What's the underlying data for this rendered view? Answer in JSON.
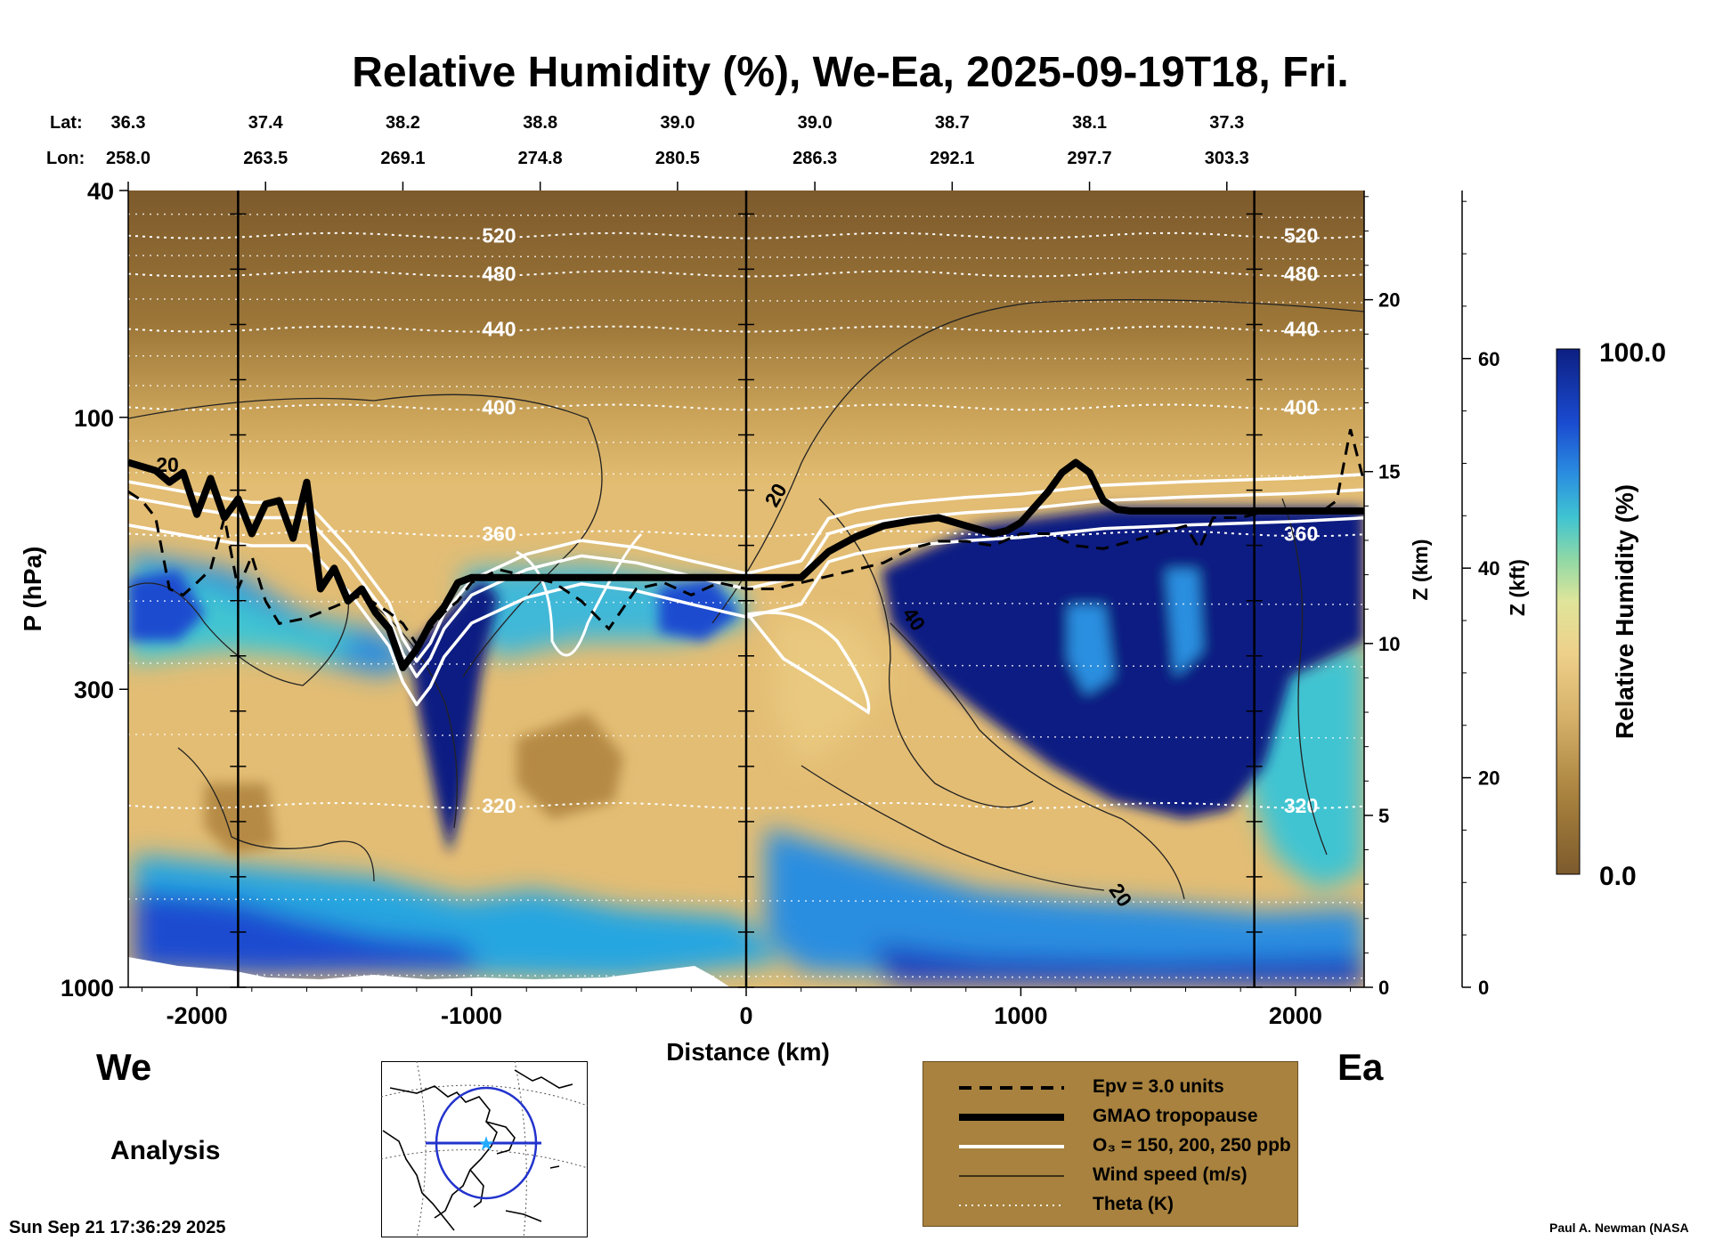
{
  "chart_data": {
    "type": "heatmap",
    "title": "Relative Humidity (%), We-Ea, 2025-09-19T18, Fri.",
    "xlabel": "Distance (km)",
    "ylabel": "P (hPa)",
    "right_axis_km_label": "Z (km)",
    "right_axis_kft_label": "Z (kft)",
    "colorbar_label": "Relative Humidity (%)",
    "colorbar_max_label": "100.0",
    "colorbar_min_label": "0.0",
    "colorbar_range": [
      0,
      100
    ],
    "xlim": [
      -2250,
      2250
    ],
    "ylim_hpa": [
      1000,
      40
    ],
    "y_scale": "log",
    "x_ticks": [
      {
        "v": -2000,
        "t": "-2000"
      },
      {
        "v": -1000,
        "t": "-1000"
      },
      {
        "v": 0,
        "t": "0"
      },
      {
        "v": 1000,
        "t": "1000"
      },
      {
        "v": 2000,
        "t": "2000"
      }
    ],
    "y_ticks": [
      {
        "v": 1000,
        "t": "1000"
      },
      {
        "v": 300,
        "t": "300"
      },
      {
        "v": 100,
        "t": "100"
      },
      {
        "v": 40,
        "t": "40"
      }
    ],
    "z_km_ticks": [
      {
        "v": 0,
        "t": "0"
      },
      {
        "v": 5,
        "t": "5"
      },
      {
        "v": 10,
        "t": "10"
      },
      {
        "v": 15,
        "t": "15"
      },
      {
        "v": 20,
        "t": "20"
      }
    ],
    "z_kft_ticks": [
      {
        "v": 0,
        "t": "0"
      },
      {
        "v": 20,
        "t": "20"
      },
      {
        "v": 40,
        "t": "40"
      },
      {
        "v": 60,
        "t": "60"
      }
    ],
    "lat_label": "Lat:",
    "lon_label": "Lon:",
    "latlon": [
      {
        "x": -2250,
        "lat": "36.3",
        "lon": "258.0"
      },
      {
        "x": -1750,
        "lat": "37.4",
        "lon": "263.5"
      },
      {
        "x": -1250,
        "lat": "38.2",
        "lon": "269.1"
      },
      {
        "x": -750,
        "lat": "38.8",
        "lon": "274.8"
      },
      {
        "x": -250,
        "lat": "39.0",
        "lon": "280.5"
      },
      {
        "x": 250,
        "lat": "39.0",
        "lon": "286.3"
      },
      {
        "x": 750,
        "lat": "38.7",
        "lon": "292.1"
      },
      {
        "x": 1250,
        "lat": "38.1",
        "lon": "297.7"
      },
      {
        "x": 1750,
        "lat": "37.3",
        "lon": "303.3"
      }
    ],
    "vertical_markers_km": [
      -1850,
      0,
      1850
    ],
    "series": [
      {
        "name": "GMAO tropopause",
        "x": [
          -2250,
          -2150,
          -2100,
          -2050,
          -2000,
          -1950,
          -1900,
          -1850,
          -1800,
          -1750,
          -1700,
          -1650,
          -1600,
          -1550,
          -1500,
          -1450,
          -1400,
          -1350,
          -1300,
          -1250,
          -1200,
          -1150,
          -1100,
          -1050,
          -1000,
          -900,
          -500,
          0,
          200,
          300,
          400,
          500,
          600,
          700,
          800,
          900,
          950,
          1000,
          1100,
          1150,
          1200,
          1250,
          1300,
          1350,
          1400,
          1600,
          1800,
          2000,
          2250
        ],
        "y": [
          120,
          124,
          130,
          125,
          148,
          128,
          150,
          139,
          160,
          142,
          140,
          163,
          130,
          200,
          184,
          210,
          200,
          220,
          235,
          275,
          255,
          230,
          215,
          195,
          191,
          191,
          191,
          191,
          191,
          172,
          162,
          155,
          152,
          150,
          155,
          160,
          158,
          153,
          135,
          125,
          120,
          125,
          140,
          145,
          146,
          146,
          146,
          146,
          146
        ]
      },
      {
        "name": "Epv = 3.0 units",
        "x": [
          -2250,
          -2200,
          -2150,
          -2100,
          -2050,
          -2000,
          -1950,
          -1900,
          -1850,
          -1800,
          -1750,
          -1700,
          -1600,
          -1500,
          -1400,
          -1300,
          -1250,
          -1200,
          -1150,
          -1100,
          -1050,
          -1000,
          -900,
          -800,
          -700,
          -600,
          -500,
          -400,
          -300,
          -200,
          -100,
          0,
          100,
          200,
          300,
          400,
          500,
          600,
          700,
          800,
          900,
          1000,
          1100,
          1200,
          1300,
          1400,
          1500,
          1600,
          1650,
          1700,
          1800,
          1900,
          2000,
          2100,
          2150,
          2200,
          2250
        ],
        "y": [
          135,
          140,
          150,
          200,
          205,
          195,
          185,
          150,
          200,
          175,
          210,
          230,
          225,
          215,
          205,
          220,
          230,
          250,
          235,
          220,
          210,
          195,
          185,
          190,
          195,
          210,
          235,
          200,
          195,
          205,
          195,
          200,
          200,
          195,
          190,
          185,
          180,
          170,
          165,
          165,
          168,
          160,
          160,
          168,
          170,
          165,
          160,
          155,
          170,
          150,
          150,
          146,
          146,
          146,
          140,
          105,
          130
        ]
      },
      {
        "name": "O3 = 150, 200, 250 ppb",
        "x": [
          -2250,
          -2000,
          -1800,
          -1600,
          -1450,
          -1300,
          -1250,
          -1200,
          -1150,
          -1100,
          -1000,
          -800,
          -600,
          -400,
          -200,
          0,
          200,
          300,
          400,
          500,
          600,
          800,
          1000,
          1300,
          1600,
          2000,
          2250
        ],
        "y": [
          138,
          145,
          150,
          150,
          180,
          225,
          260,
          285,
          265,
          235,
          205,
          185,
          175,
          180,
          190,
          200,
          190,
          160,
          155,
          152,
          150,
          147,
          145,
          140,
          138,
          136,
          134
        ]
      },
      {
        "name": "Theta (K)",
        "levels": [
          {
            "label": "520",
            "p": 48
          },
          {
            "label": "480",
            "p": 56
          },
          {
            "label": "440",
            "p": 70
          },
          {
            "label": "400",
            "p": 96
          },
          {
            "label": "360",
            "p": 160
          },
          {
            "label": "320",
            "p": 480
          }
        ]
      },
      {
        "name": "Wind speed (m/s)",
        "contour_labels": [
          "20",
          "40"
        ]
      }
    ],
    "legend": {
      "placement": "bottom-right",
      "entries": [
        {
          "style": "dashed",
          "text": "Epv = 3.0 units"
        },
        {
          "style": "thick",
          "text": "GMAO tropopause"
        },
        {
          "style": "white",
          "text": "O₃ = 150, 200, 250 ppb"
        },
        {
          "style": "thin",
          "text": "Wind speed (m/s)"
        },
        {
          "style": "dotted",
          "text": "Theta (K)"
        }
      ]
    }
  },
  "labels": {
    "west": "We",
    "east": "Ea",
    "analysis": "Analysis",
    "timestamp": "Sun Sep 21 17:36:29 2025",
    "credit": "Paul A. Newman (NASA"
  },
  "colors": {
    "dry": "#7d5a2c",
    "moist": "#0d1f82",
    "legend_bg": "#a8823e"
  }
}
